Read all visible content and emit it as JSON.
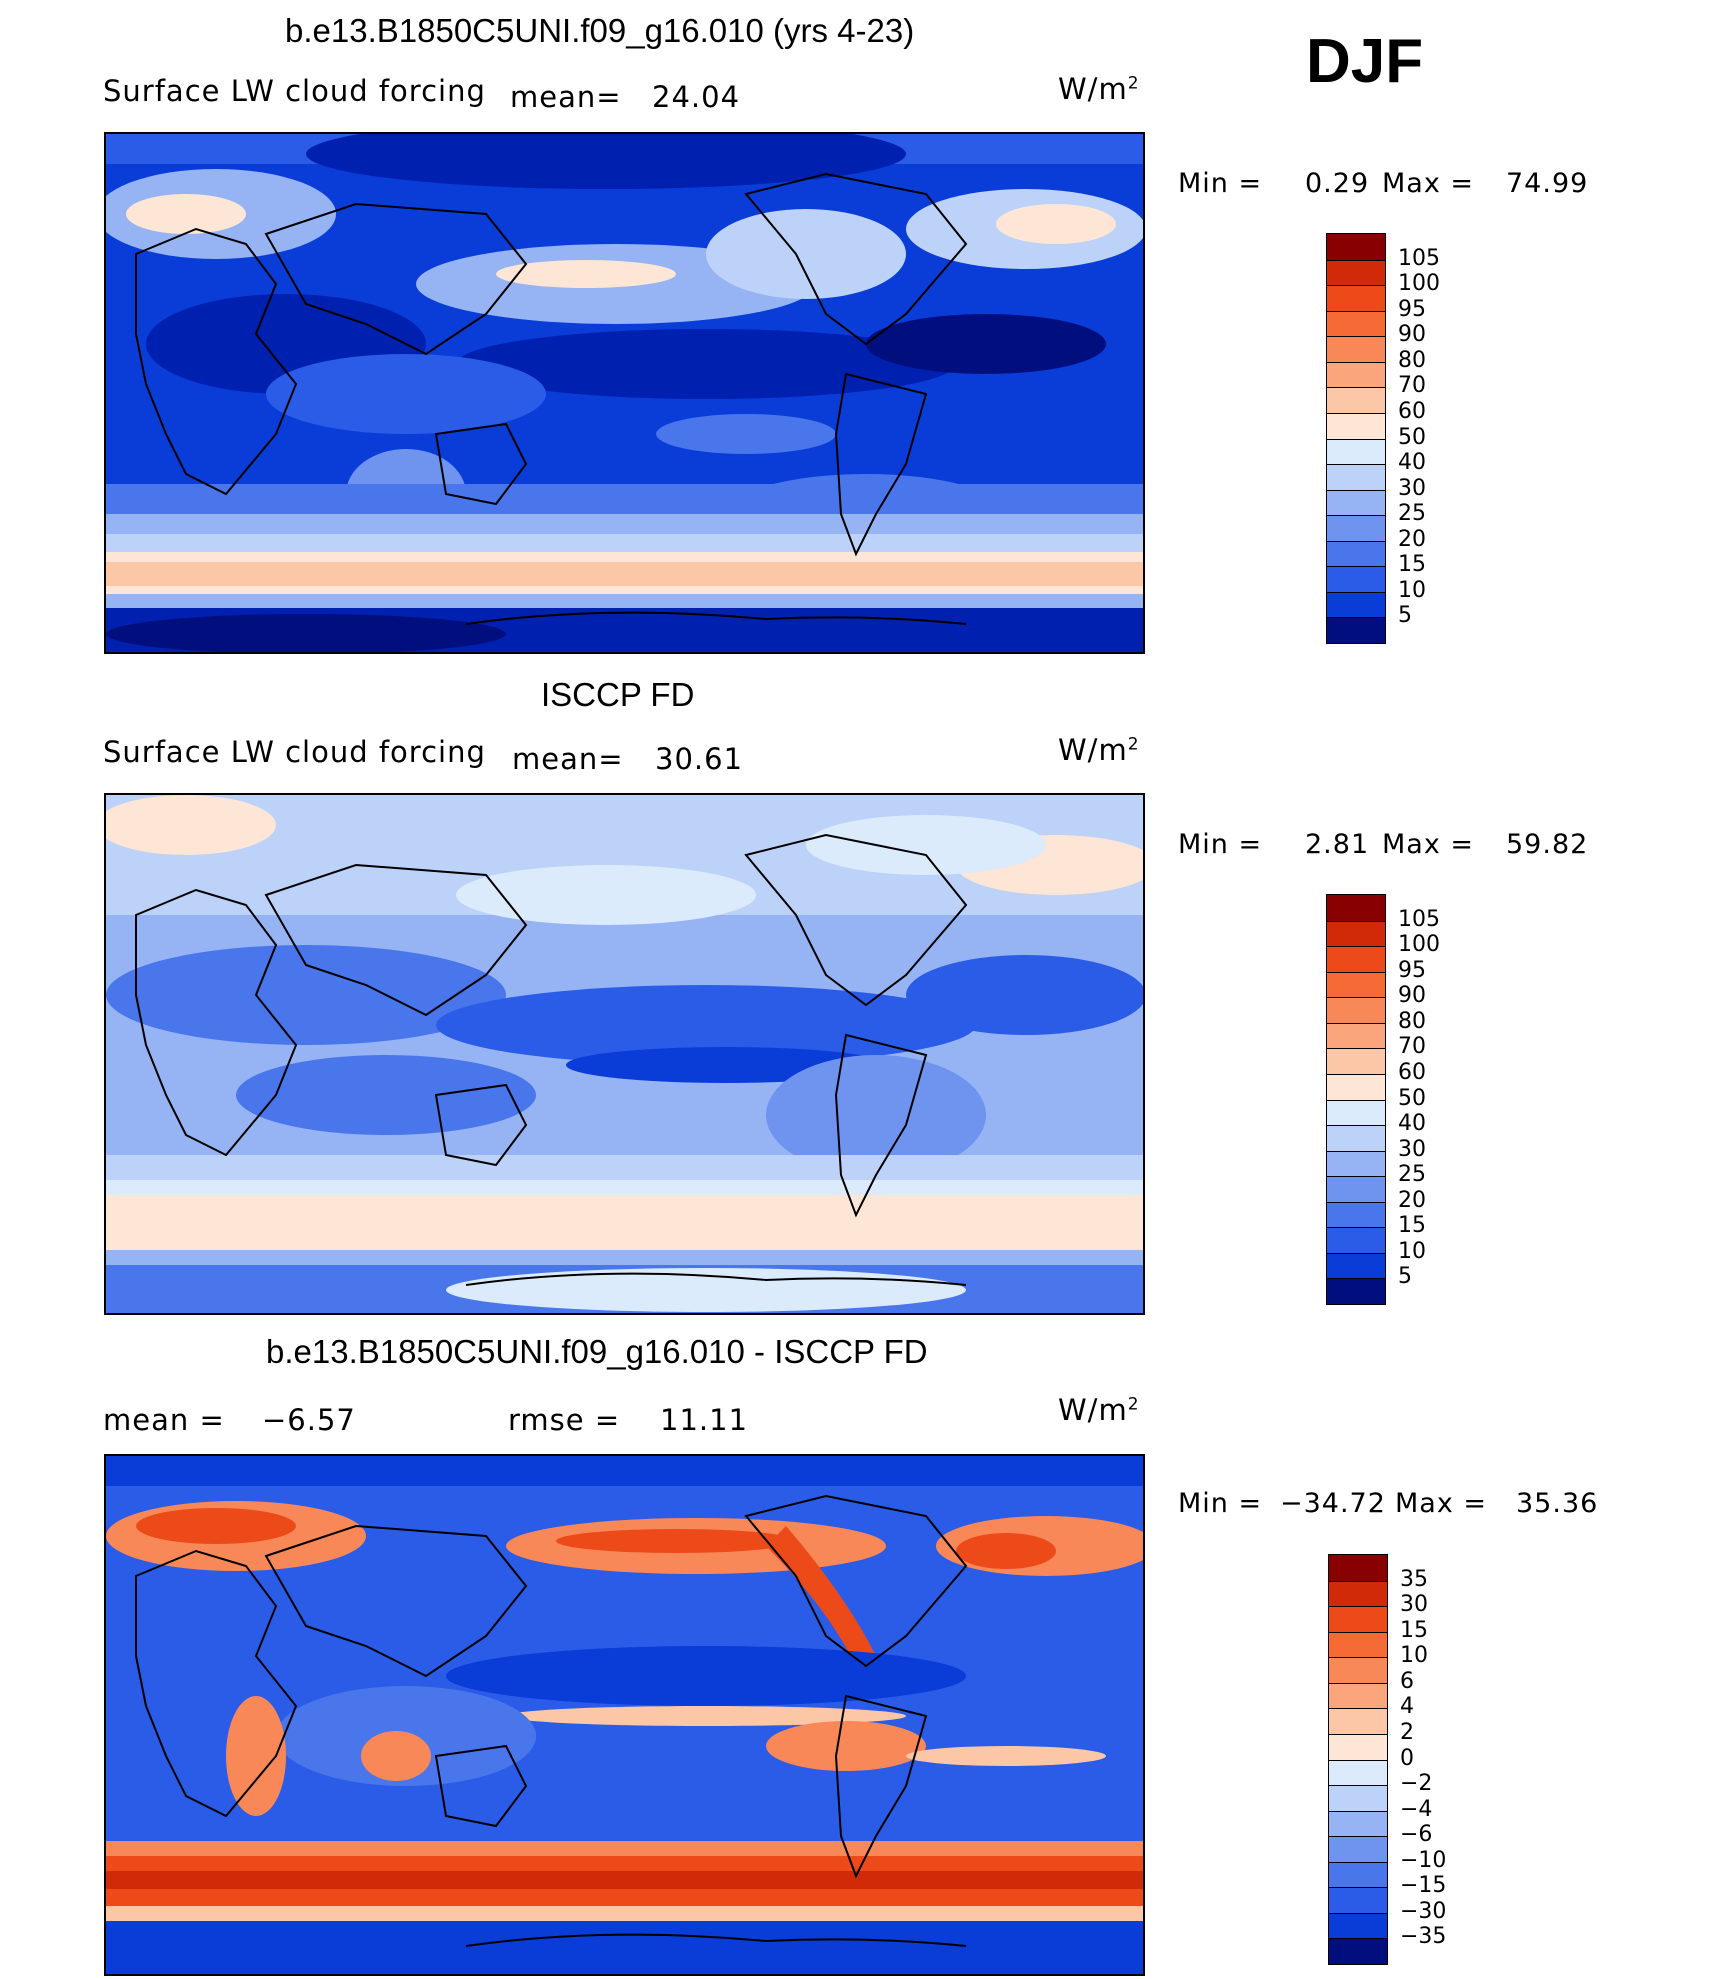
{
  "season": "DJF",
  "colors": {
    "c1": "#000e7e",
    "c2": "#0020b0",
    "c3": "#0a3cd8",
    "c4": "#2a5ce8",
    "c5": "#4a76ec",
    "c6": "#6e94f0",
    "c7": "#96b4f4",
    "c8": "#bcd2f8",
    "c9": "#dcebfb",
    "c10": "#fde6d6",
    "c11": "#fcc7a6",
    "c12": "#fba57c",
    "c13": "#f98858",
    "c14": "#f66a36",
    "c15": "#ec4a18",
    "c16": "#d02a08",
    "c17": "#b01008",
    "c18": "#880000"
  },
  "panels": [
    {
      "id": "model",
      "title": "b.e13.B1850C5UNI.f09_g16.010 (yrs 4-23)",
      "field": "Surface LW cloud forcing",
      "mean_label": "mean=",
      "mean_value": "24.04",
      "units": "W/m",
      "units_exp": "2",
      "min_label": "Min =",
      "min_value": "0.29",
      "max_label": "Max =",
      "max_value": "74.99",
      "levels": [
        "105",
        "100",
        "95",
        "90",
        "80",
        "70",
        "60",
        "50",
        "40",
        "30",
        "25",
        "20",
        "15",
        "10",
        "5"
      ]
    },
    {
      "id": "obs",
      "title": "ISCCP FD",
      "field": "Surface LW cloud forcing",
      "mean_label": "mean=",
      "mean_value": "30.61",
      "units": "W/m",
      "units_exp": "2",
      "min_label": "Min =",
      "min_value": "2.81",
      "max_label": "Max =",
      "max_value": "59.82",
      "levels": [
        "105",
        "100",
        "95",
        "90",
        "80",
        "70",
        "60",
        "50",
        "40",
        "30",
        "25",
        "20",
        "15",
        "10",
        "5"
      ]
    },
    {
      "id": "diff",
      "title": "b.e13.B1850C5UNI.f09_g16.010 - ISCCP FD",
      "mean_label": "mean =",
      "mean_value": "−6.57",
      "rmse_label": "rmse =",
      "rmse_value": "11.11",
      "units": "W/m",
      "units_exp": "2",
      "min_label": "Min =",
      "min_value": "−34.72",
      "max_label": "Max =",
      "max_value": "35.36",
      "levels": [
        "35",
        "30",
        "15",
        "10",
        "6",
        "4",
        "2",
        "0",
        "−2",
        "−4",
        "−6",
        "−10",
        "−15",
        "−30",
        "−35"
      ]
    }
  ]
}
